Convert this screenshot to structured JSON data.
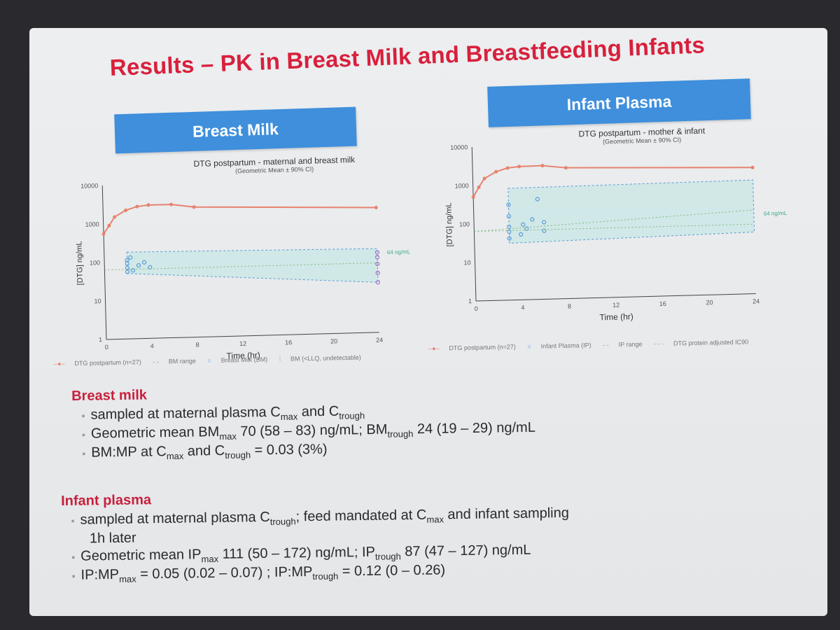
{
  "slide_title": "Results – PK in Breast Milk and Breastfeeding Infants",
  "left_panel": {
    "header": "Breast Milk"
  },
  "right_panel": {
    "header": "Infant Plasma"
  },
  "chart_data": [
    {
      "type": "line",
      "title": "DTG postpartum - maternal and breast milk",
      "subtitle": "(Geometric Mean ± 90% CI)",
      "xlabel": "Time (hr)",
      "ylabel": "[DTG] ng/mL",
      "yscale": "log",
      "ylim": [
        1,
        10000
      ],
      "xlim": [
        0,
        24
      ],
      "xticks": [
        0,
        4,
        8,
        12,
        16,
        20,
        24
      ],
      "yticks": [
        1,
        10,
        100,
        1000,
        10000
      ],
      "annotation": "64 ng/mL",
      "reference_line": 64,
      "series": [
        {
          "name": "DTG postpartum (n=27)",
          "color": "#e8826e",
          "x": [
            0,
            0.5,
            1,
            2,
            3,
            4,
            6,
            8,
            24
          ],
          "y": [
            550,
            900,
            1500,
            2200,
            2700,
            2900,
            2900,
            2400,
            1750
          ]
        },
        {
          "name": "BM range",
          "color": "#5b9ad6",
          "band_x": [
            2,
            24
          ],
          "band_low": [
            50,
            20
          ],
          "band_high": [
            180,
            150
          ]
        },
        {
          "name": "Breast Milk (BM)",
          "color": "#5b9ad6",
          "x": [
            2,
            2,
            2,
            2,
            2.3,
            2.5,
            3,
            3.5,
            4
          ],
          "y": [
            55,
            70,
            90,
            110,
            130,
            60,
            80,
            95,
            70
          ]
        },
        {
          "name": "BM (<LLQ, undetectable)",
          "color": "#a070c8",
          "x": [
            24,
            24,
            24,
            24,
            24
          ],
          "y": [
            20,
            35,
            60,
            90,
            120
          ]
        }
      ],
      "legend": [
        "DTG postpartum (n=27)",
        "BM range",
        "Breast Milk (BM)",
        "BM (<LLQ, undetectable)"
      ]
    },
    {
      "type": "line",
      "title": "DTG postpartum - mother & infant",
      "subtitle": "(Geometric Mean ± 90% CI)",
      "xlabel": "Time (hr)",
      "ylabel": "[DTG] ng/mL",
      "yscale": "log",
      "ylim": [
        1,
        10000
      ],
      "xlim": [
        0,
        24
      ],
      "xticks": [
        0,
        4,
        8,
        12,
        16,
        20,
        24
      ],
      "yticks": [
        1,
        10,
        100,
        1000,
        10000
      ],
      "annotation": "64 ng/mL",
      "reference_line": 64,
      "series": [
        {
          "name": "DTG postpartum (n=27)",
          "color": "#e8826e",
          "x": [
            0,
            0.5,
            1,
            2,
            3,
            4,
            6,
            8,
            24
          ],
          "y": [
            500,
            900,
            1500,
            2200,
            2700,
            2900,
            2950,
            2500,
            1900
          ]
        },
        {
          "name": "Infant Plasma (IP)",
          "color": "#5b9ad6",
          "x": [
            3,
            3,
            3,
            3,
            3,
            4,
            4.2,
            4.5,
            5,
            5.5,
            6,
            6
          ],
          "y": [
            40,
            60,
            80,
            150,
            300,
            50,
            90,
            70,
            120,
            400,
            60,
            100
          ]
        },
        {
          "name": "IP range",
          "color": "#5b9ad6",
          "band_x": [
            3,
            24
          ],
          "band_low": [
            30,
            40
          ],
          "band_high": [
            800,
            900
          ]
        },
        {
          "name": "DTG protein adjusted IC90",
          "color": "#7fb87f",
          "x": [
            0,
            24
          ],
          "y": [
            64,
            150
          ]
        }
      ],
      "legend": [
        "DTG postpartum (n=27)",
        "Infant Plasma (IP)",
        "IP range",
        "DTG protein adjusted IC90"
      ]
    }
  ],
  "breast_milk": {
    "heading": "Breast milk",
    "b1": {
      "pre": "sampled at maternal plasma C",
      "s1": "max",
      "mid": " and C",
      "s2": "trough"
    },
    "b2": {
      "pre": "Geometric mean BM",
      "s1": "max",
      "mid": " 70 (58 – 83) ng/mL; BM",
      "s2": "trough",
      "post": " 24 (19 – 29) ng/mL"
    },
    "b3": {
      "pre": "BM:MP at C",
      "s1": "max",
      "mid": " and C",
      "s2": "trough",
      "post": " = 0.03 (3%)"
    }
  },
  "infant_plasma": {
    "heading": "Infant plasma",
    "b1": {
      "pre": "sampled at maternal plasma C",
      "s1": "trough",
      "mid": "; feed mandated at C",
      "s2": "max",
      "post": " and infant sampling"
    },
    "b1_cont": "1h later",
    "b2": {
      "pre": "Geometric mean IP",
      "s1": "max",
      "mid": " 111 (50 – 172) ng/mL; IP",
      "s2": "trough",
      "post": " 87 (47 – 127) ng/mL"
    },
    "b3": {
      "pre": "IP:MP",
      "s1": "max",
      "mid": " = 0.05 (0.02 – 0.07)  ; IP:MP",
      "s2": "trough",
      "post": " = 0.12 (0 – 0.26)"
    }
  }
}
